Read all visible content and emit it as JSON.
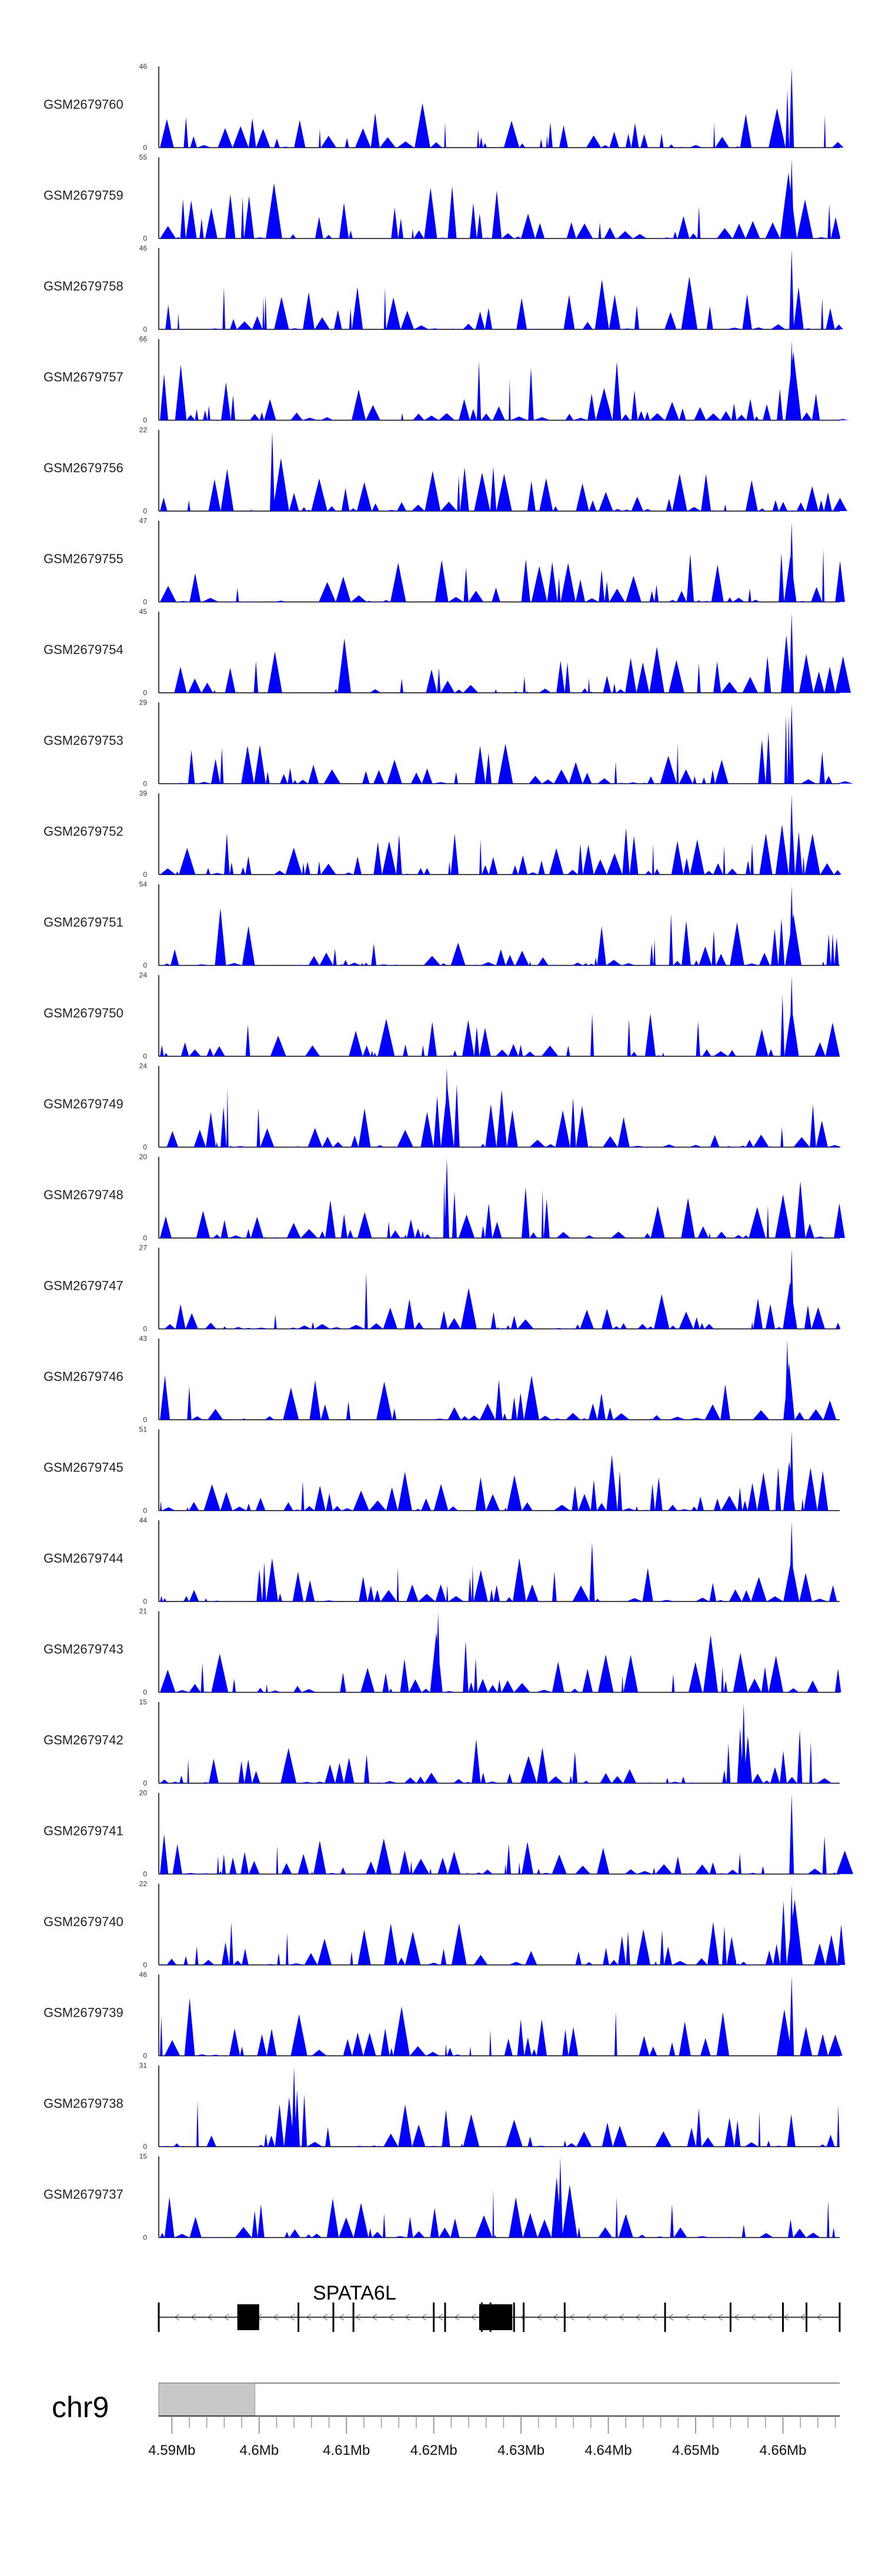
{
  "chart_data": {
    "type": "area",
    "title": "",
    "region": {
      "chrom": "chr9",
      "start_mb": 4.5885,
      "end_mb": 4.6665
    },
    "tracks": [
      {
        "name": "GSM2679760",
        "ymax": "46",
        "ymin": "0",
        "max": 46,
        "peak_mb": 4.661
      },
      {
        "name": "GSM2679759",
        "ymax": "55",
        "ymin": "0",
        "max": 55,
        "peak_mb": 4.661
      },
      {
        "name": "GSM2679758",
        "ymax": "46",
        "ymin": "0",
        "max": 46,
        "peak_mb": 4.661
      },
      {
        "name": "GSM2679757",
        "ymax": "66",
        "ymin": "0",
        "max": 66,
        "peak_mb": 4.661
      },
      {
        "name": "GSM2679756",
        "ymax": "22",
        "ymin": "0",
        "max": 22,
        "peak_mb": 4.6015
      },
      {
        "name": "GSM2679755",
        "ymax": "47",
        "ymin": "0",
        "max": 47,
        "peak_mb": 4.661
      },
      {
        "name": "GSM2679754",
        "ymax": "45",
        "ymin": "0",
        "max": 45,
        "peak_mb": 4.661
      },
      {
        "name": "GSM2679753",
        "ymax": "29",
        "ymin": "0",
        "max": 29,
        "peak_mb": 4.661
      },
      {
        "name": "GSM2679752",
        "ymax": "39",
        "ymin": "0",
        "max": 39,
        "peak_mb": 4.661
      },
      {
        "name": "GSM2679751",
        "ymax": "54",
        "ymin": "0",
        "max": 54,
        "peak_mb": 4.661
      },
      {
        "name": "GSM2679750",
        "ymax": "24",
        "ymin": "0",
        "max": 24,
        "peak_mb": 4.661
      },
      {
        "name": "GSM2679749",
        "ymax": "24",
        "ymin": "0",
        "max": 24,
        "peak_mb": 4.6215
      },
      {
        "name": "GSM2679748",
        "ymax": "20",
        "ymin": "0",
        "max": 20,
        "peak_mb": 4.6215
      },
      {
        "name": "GSM2679747",
        "ymax": "27",
        "ymin": "0",
        "max": 27,
        "peak_mb": 4.661
      },
      {
        "name": "GSM2679746",
        "ymax": "43",
        "ymin": "0",
        "max": 43,
        "peak_mb": 4.6605
      },
      {
        "name": "GSM2679745",
        "ymax": "51",
        "ymin": "0",
        "max": 51,
        "peak_mb": 4.661
      },
      {
        "name": "GSM2679744",
        "ymax": "44",
        "ymin": "0",
        "max": 44,
        "peak_mb": 4.661
      },
      {
        "name": "GSM2679743",
        "ymax": "21",
        "ymin": "0",
        "max": 21,
        "peak_mb": 4.6205
      },
      {
        "name": "GSM2679742",
        "ymax": "15",
        "ymin": "0",
        "max": 15,
        "peak_mb": 4.6555
      },
      {
        "name": "GSM2679741",
        "ymax": "20",
        "ymin": "0",
        "max": 20,
        "peak_mb": 4.661
      },
      {
        "name": "GSM2679740",
        "ymax": "22",
        "ymin": "0",
        "max": 22,
        "peak_mb": 4.661
      },
      {
        "name": "GSM2679739",
        "ymax": "46",
        "ymin": "0",
        "max": 46,
        "peak_mb": 4.661
      },
      {
        "name": "GSM2679738",
        "ymax": "31",
        "ymin": "0",
        "max": 31,
        "peak_mb": 4.604
      },
      {
        "name": "GSM2679737",
        "ymax": "15",
        "ymin": "0",
        "max": 15,
        "peak_mb": 4.6345
      }
    ],
    "gene": {
      "name": "SPATA6L",
      "strand": "-",
      "start_mb": 4.5885,
      "end_mb": 4.6665,
      "exons_mb": [
        [
          4.5975,
          4.6
        ],
        [
          4.6252,
          4.629
        ]
      ],
      "exon_lines_mb": [
        4.5885,
        4.6045,
        4.6085,
        4.6108,
        4.62,
        4.6213,
        4.6255,
        4.6265,
        4.6292,
        4.6303,
        4.635,
        4.6465,
        4.654,
        4.66,
        4.6627,
        4.6665
      ]
    },
    "ideogram": {
      "chrom_label": "chr9",
      "highlight_mb": [
        4.5885,
        4.5995
      ]
    },
    "x_axis": {
      "ticks_mb": [
        4.59,
        4.6,
        4.61,
        4.62,
        4.63,
        4.64,
        4.65,
        4.66
      ],
      "tick_labels": [
        "4.59Mb",
        "4.6Mb",
        "4.61Mb",
        "4.62Mb",
        "4.63Mb",
        "4.64Mb",
        "4.65Mb",
        "4.66Mb"
      ]
    },
    "colors": {
      "signal": "#0000ff",
      "axis": "#000000",
      "highlight": "#c8c8c8"
    }
  }
}
